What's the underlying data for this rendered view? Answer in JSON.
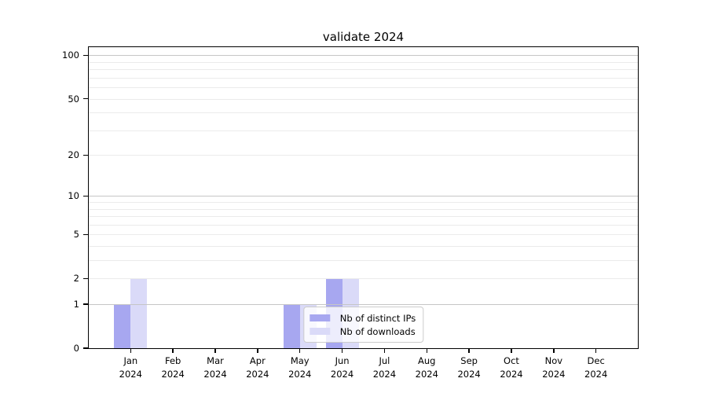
{
  "chart_data": {
    "type": "bar",
    "title": "validate 2024",
    "categories": [
      "Jan",
      "Feb",
      "Mar",
      "Apr",
      "May",
      "Jun",
      "Jul",
      "Aug",
      "Sep",
      "Oct",
      "Nov",
      "Dec"
    ],
    "category_year": "2024",
    "series": [
      {
        "name": "Nb of distinct IPs",
        "color": "#a7a7f0",
        "values": [
          1,
          0,
          0,
          0,
          1,
          2,
          0,
          0,
          0,
          0,
          0,
          0
        ]
      },
      {
        "name": "Nb of downloads",
        "color": "#dadaf8",
        "values": [
          2,
          0,
          0,
          0,
          1,
          2,
          0,
          0,
          0,
          0,
          0,
          0
        ]
      }
    ],
    "yscale": "log1p",
    "ylim": [
      0,
      114
    ],
    "yticks": [
      0,
      1,
      2,
      5,
      10,
      20,
      50,
      100
    ],
    "major_gridlines": [
      1,
      10,
      100
    ],
    "minor_gridlines": [
      2,
      3,
      4,
      5,
      6,
      7,
      8,
      9,
      20,
      30,
      40,
      50,
      60,
      70,
      80,
      90
    ],
    "grid": true,
    "legend_position": "lower center"
  },
  "colors": {
    "background": "#ffffff",
    "spine": "#000000",
    "grid_major": "#c6c6c6",
    "grid_minor": "#ebebeb",
    "legend_border": "#cccccc"
  }
}
